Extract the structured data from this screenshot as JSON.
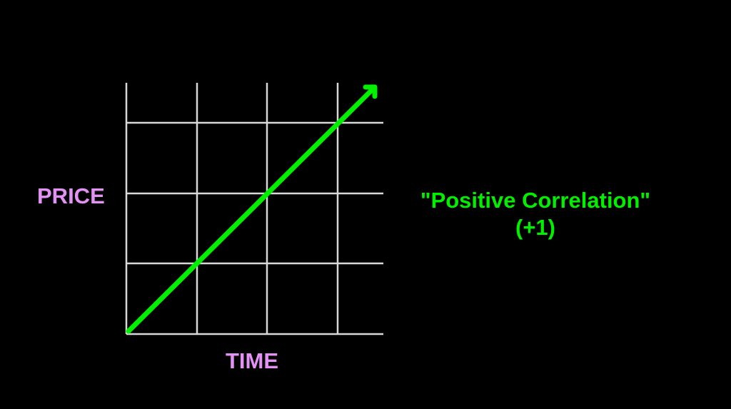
{
  "diagram": {
    "y_axis_label": "PRICE",
    "x_axis_label": "TIME",
    "caption": "\"Positive Correlation\"",
    "caption_value": "(+1)",
    "colors": {
      "background": "#000000",
      "grid": "#d8d8d8",
      "trend_line": "#00f000",
      "axis_labels": "#e391f5",
      "caption": "#00f000"
    },
    "trend": "up-right arrow (positive correlation)"
  }
}
